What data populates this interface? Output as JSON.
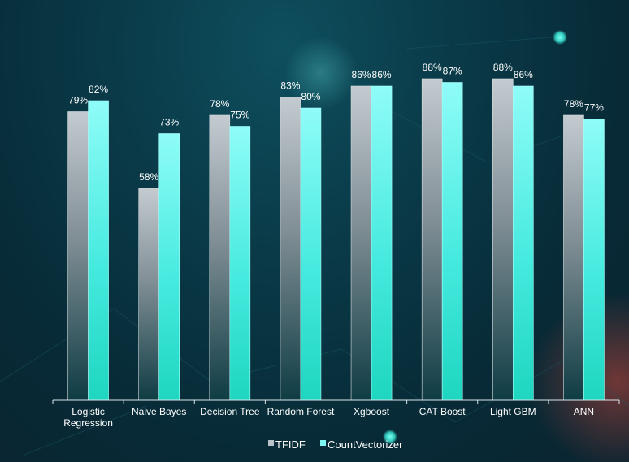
{
  "chart_data": {
    "type": "bar",
    "categories": [
      [
        "Logistic",
        "Regression"
      ],
      [
        "Naive Bayes"
      ],
      [
        "Decision Tree"
      ],
      [
        "Random Forest"
      ],
      [
        "Xgboost"
      ],
      [
        "CAT Boost"
      ],
      [
        "Light GBM"
      ],
      [
        "ANN"
      ]
    ],
    "series": [
      {
        "name": "TFIDF",
        "values": [
          79,
          58,
          78,
          83,
          86,
          88,
          88,
          78
        ],
        "labels": [
          "79%",
          "58%",
          "78%",
          "83%",
          "86%",
          "88%",
          "88%",
          "78%"
        ],
        "color": "#b8c2c8"
      },
      {
        "name": "CountVectorizer",
        "values": [
          82,
          73,
          75,
          80,
          86,
          87,
          86,
          77
        ],
        "labels": [
          "82%",
          "73%",
          "75%",
          "80%",
          "86%",
          "87%",
          "86%",
          "77%"
        ],
        "color": "#7ef5f0"
      }
    ],
    "unit": "%",
    "ylim": [
      0,
      100
    ],
    "grid": false,
    "legend": "bottom-center",
    "title": "",
    "xlabel": "",
    "ylabel": ""
  },
  "colors": {
    "background": "#0a3a48",
    "axis": "#d8e6ea",
    "tfidf_bottom": "#0f3c44",
    "countvec_bottom": "#1ee0c8",
    "accent_dot": "#3ff2e0"
  }
}
